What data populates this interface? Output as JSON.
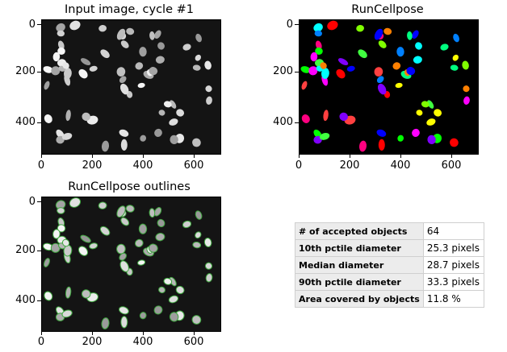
{
  "panels": [
    {
      "title": "Input image, cycle #1",
      "yticks": [
        "0",
        "200",
        "400"
      ],
      "xticks": [
        "0",
        "200",
        "400",
        "600"
      ]
    },
    {
      "title": "RunCellpose",
      "yticks": [
        "0",
        "200",
        "400"
      ],
      "xticks": [
        "0",
        "200",
        "400",
        "600"
      ]
    },
    {
      "title": "RunCellpose outlines",
      "yticks": [
        "0",
        "200",
        "400"
      ],
      "xticks": [
        "0",
        "200",
        "400",
        "600"
      ]
    }
  ],
  "stats": {
    "rows": [
      {
        "label": "# of accepted objects",
        "value": "64"
      },
      {
        "label": "10th pctile diameter",
        "value": "25.3 pixels"
      },
      {
        "label": "Median diameter",
        "value": "28.7 pixels"
      },
      {
        "label": "90th pctile diameter",
        "value": "33.3 pixels"
      },
      {
        "label": "Area covered by objects",
        "value": "11.8 %"
      }
    ]
  },
  "colors": {
    "background_image": "#141414",
    "outline": "#3fa63f",
    "mask_background": "#000000"
  }
}
